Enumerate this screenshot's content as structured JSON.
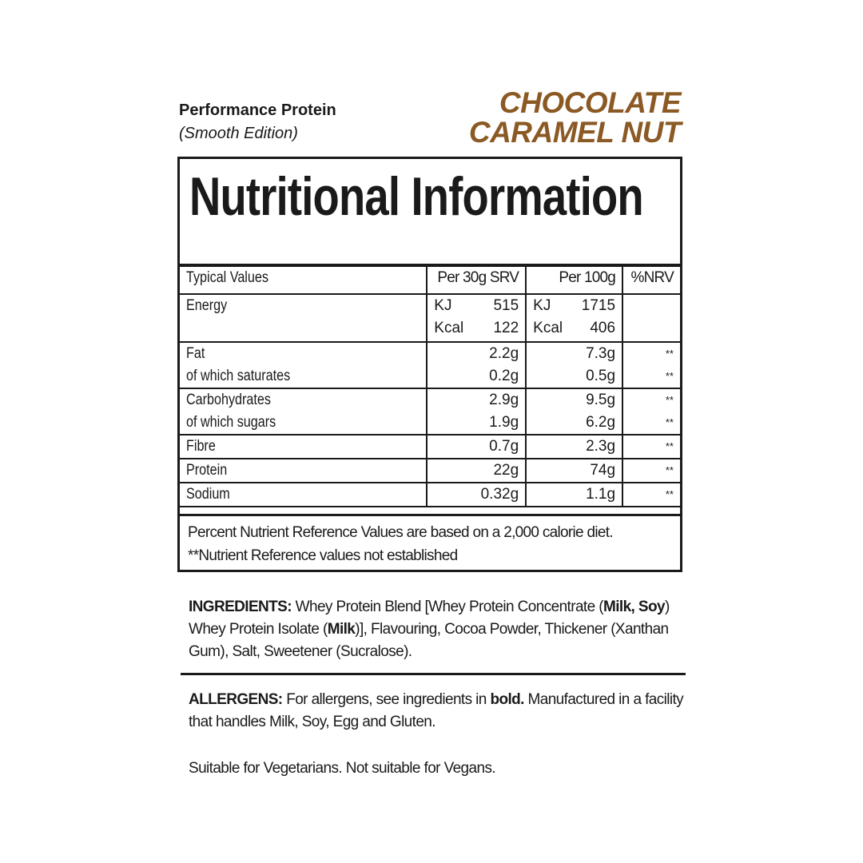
{
  "header": {
    "product": "Performance Protein",
    "edition": "(Smooth Edition)",
    "flavour_line1": "CHOCOLATE",
    "flavour_line2": "CARAMEL NUT",
    "flavour_color": "#8b5a24"
  },
  "panel": {
    "title": "Nutritional Information",
    "columns": [
      "Typical Values",
      "Per 30g SRV",
      "Per 100g",
      "%NRV"
    ],
    "energy": {
      "label": "Energy",
      "units": [
        "KJ",
        "Kcal"
      ],
      "per_serving": [
        "515",
        "122"
      ],
      "per_100g": [
        "1715",
        "406"
      ]
    },
    "rows": [
      {
        "labels": [
          "Fat",
          "of which saturates"
        ],
        "per_serving": [
          "2.2g",
          "0.2g"
        ],
        "per_100g": [
          "7.3g",
          "0.5g"
        ],
        "nrv": [
          "**",
          "**"
        ]
      },
      {
        "labels": [
          "Carbohydrates",
          "of which sugars"
        ],
        "per_serving": [
          "2.9g",
          "1.9g"
        ],
        "per_100g": [
          "9.5g",
          "6.2g"
        ],
        "nrv": [
          "**",
          "**"
        ]
      },
      {
        "labels": [
          "Fibre"
        ],
        "per_serving": [
          "0.7g"
        ],
        "per_100g": [
          "2.3g"
        ],
        "nrv": [
          "**"
        ]
      },
      {
        "labels": [
          "Protein"
        ],
        "per_serving": [
          "22g"
        ],
        "per_100g": [
          "74g"
        ],
        "nrv": [
          "**"
        ]
      },
      {
        "labels": [
          "Sodium"
        ],
        "per_serving": [
          "0.32g"
        ],
        "per_100g": [
          "1.1g"
        ],
        "nrv": [
          "**"
        ]
      }
    ],
    "footnote1": "Percent Nutrient Reference Values are based on a 2,000 calorie diet.",
    "footnote2": "**Nutrient Reference values not established"
  },
  "ingredients": {
    "label": "INGREDIENTS:",
    "t1": " Whey Protein Blend [Whey Protein Concentrate (",
    "b1": "Milk, Soy",
    "t2": ") Whey Protein Isolate (",
    "b2": "Milk",
    "t3": ")], Flavouring, Cocoa Powder, Thickener (Xanthan Gum), Salt, Sweetener (Sucralose)."
  },
  "allergens": {
    "label": "ALLERGENS:",
    "t1": " For allergens, see ingredients in ",
    "b1": "bold.",
    "t2": " Manufactured in a facility that handles Milk, Soy, Egg and Gluten."
  },
  "suitability": "Suitable for Vegetarians. Not suitable for Vegans."
}
